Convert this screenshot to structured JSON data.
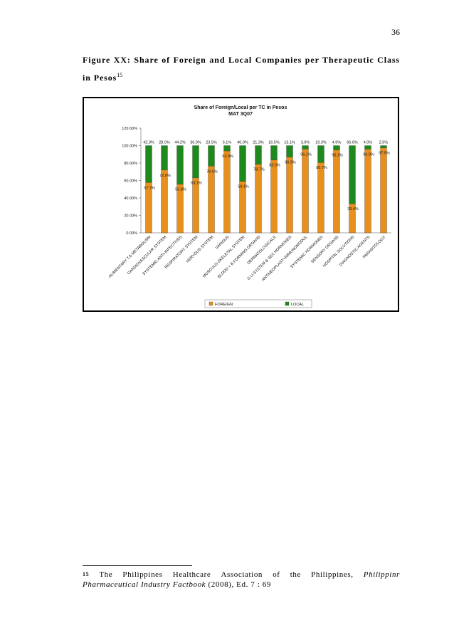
{
  "page": {
    "number": "36",
    "caption": "Figure XX: Share of Foreign and Local Companies per Therapeutic Class in Pesos",
    "caption_ref": "15"
  },
  "footnote": {
    "number": "15",
    "words": [
      "The",
      "Philippines",
      "Healthcare",
      "Association",
      "of",
      "the",
      "Philippines,"
    ],
    "italic_start": "Philippinr",
    "italic_rest": "Pharmaceutical Industry Factbook",
    "tail": " (2008), Ed. 7 : 69"
  },
  "chart_data": {
    "type": "bar",
    "stacked": true,
    "title": "Share of Foreign/Local per TC in Pesos",
    "subtitle": "MAT 3Q07",
    "categories": [
      "ALIMENTARY T.& METABOLISM",
      "CARDIOVASCULAR SYSTEM",
      "SYSTEMIC ANTI-INFECTIVES",
      "RESPIRATORY SYSTEM",
      "NERVOUS SYSTEM",
      "VARIOUS",
      "MUSCULO-SKELETAL SYSTEM",
      "BLOOD + B.FORMING ORGANS",
      "DERMATOLOGICALS",
      "G.U.SYSTEM & SEX HORMONES",
      "ANTINEOPLAST+IMMUNOMODUL",
      "SYSTEMIC HORMONES",
      "SENSORY ORGANS",
      "HOSPITAL SOLUTIONS",
      "DIAGNOSTIC AGENTS",
      "PARASITOLOGY"
    ],
    "series": [
      {
        "name": "FOREIGN",
        "color": "#e8901e",
        "values": [
          57.7,
          72.0,
          55.8,
          63.1,
          76.5,
          93.9,
          59.1,
          78.7,
          83.5,
          86.9,
          96.1,
          80.7,
          95.1,
          33.4,
          96.0,
          97.5
        ],
        "labels": [
          "57.7%",
          "72.0%",
          "55.8%",
          "63.1%",
          "76.5%",
          "93.9%",
          "59.1%",
          "78.7%",
          "83.5%",
          "86.9%",
          "96.1%",
          "80.7%",
          "95.1%",
          "33.4%",
          "96.0%",
          "97.5%"
        ]
      },
      {
        "name": "LOCAL",
        "color": "#1e8a1e",
        "values": [
          42.3,
          28.0,
          44.2,
          36.9,
          23.5,
          6.1,
          40.9,
          21.3,
          16.5,
          13.1,
          3.9,
          19.3,
          4.9,
          66.6,
          4.0,
          2.5
        ],
        "labels": [
          "42.3%",
          "28.0%",
          "44.2%",
          "36.9%",
          "23.5%",
          "6.1%",
          "40.9%",
          "21.3%",
          "16.5%",
          "13.1%",
          "3.9%",
          "19.3%",
          "4.9%",
          "66.6%",
          "4.0%",
          "2.5%"
        ]
      }
    ],
    "y_ticks": [
      "0.00%",
      "20.00%",
      "40.00%",
      "60.00%",
      "80.00%",
      "100.00%",
      "120.00%"
    ],
    "ylim": [
      0,
      120
    ],
    "legend_position": "bottom",
    "grid": false
  }
}
